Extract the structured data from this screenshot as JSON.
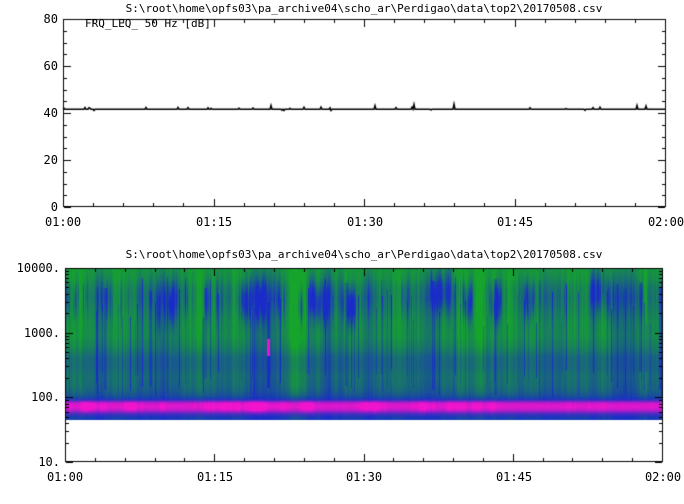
{
  "page": {
    "background": "#ffffff",
    "text_color": "#000000"
  },
  "chart_data": [
    {
      "type": "line",
      "title": "S:\\root\\home\\opfs03\\pa_archive04\\scho_ar\\Perdigao\\data\\top2\\20170508.csv",
      "annotation": "FRQ_LEQ_ 50 Hz [dB]",
      "series": [
        {
          "name": "FRQ_LEQ_ 50 Hz [dB]",
          "value_dB": 42,
          "description": "nearly constant ~42 dB across the whole hour with sporadic 1-2 dB spikes"
        }
      ],
      "x_range": [
        "01:00",
        "02:00"
      ],
      "x_tick_labels": [
        "01:00",
        "01:15",
        "01:30",
        "01:45",
        "02:00"
      ],
      "x_minor_divisions": 5,
      "ylim": [
        0,
        80
      ],
      "y_tick_values": [
        80,
        60,
        40,
        20,
        0
      ],
      "y_tick_labels": [
        "80",
        "60",
        "40",
        "20",
        "0"
      ],
      "y_minor_step": 5,
      "grid": false,
      "line_color": "#000000"
    },
    {
      "type": "heatmap",
      "title": "S:\\root\\home\\opfs03\\pa_archive04\\scho_ar\\Perdigao\\data\\top2\\20170508.csv",
      "x_range": [
        "01:00",
        "02:00"
      ],
      "x_tick_labels": [
        "01:00",
        "01:15",
        "01:30",
        "01:45",
        "02:00"
      ],
      "x_minor_divisions": 5,
      "y_scale": "log",
      "ylim": [
        10,
        10000
      ],
      "y_tick_values": [
        10000,
        1000,
        100,
        10
      ],
      "y_tick_labels": [
        "10000.",
        "1000.",
        "100.",
        "10."
      ],
      "data_freq_range_hz": [
        45,
        10000
      ],
      "blob_band_hz": [
        2000,
        6000
      ],
      "magenta_band_hz": [
        58,
        92
      ],
      "colors": {
        "low": "#16a42c",
        "high": "#1a2cc8",
        "peak": "#f214cd"
      },
      "blueness_profile": [
        [
          10000,
          0.1
        ],
        [
          7000,
          0.15
        ],
        [
          5000,
          0.28
        ],
        [
          3500,
          0.32
        ],
        [
          2500,
          0.27
        ],
        [
          1500,
          0.18
        ],
        [
          900,
          0.18
        ],
        [
          600,
          0.3
        ],
        [
          420,
          0.5
        ],
        [
          300,
          0.52
        ],
        [
          220,
          0.44
        ],
        [
          160,
          0.47
        ],
        [
          130,
          0.54
        ],
        [
          110,
          0.66
        ],
        [
          100,
          0.8
        ],
        [
          93,
          0.9
        ],
        [
          88,
          0.95
        ],
        [
          60,
          0.95
        ],
        [
          52,
          0.9
        ],
        [
          45,
          0.85
        ]
      ],
      "variability_profile": [
        [
          10000,
          0.22
        ],
        [
          6000,
          0.5
        ],
        [
          3500,
          0.7
        ],
        [
          2000,
          0.5
        ],
        [
          1000,
          0.38
        ],
        [
          500,
          0.33
        ],
        [
          300,
          0.3
        ],
        [
          150,
          0.33
        ],
        [
          110,
          0.25
        ],
        [
          95,
          0.12
        ],
        [
          60,
          0.08
        ],
        [
          45,
          0.2
        ]
      ],
      "magenta_profile": [
        [
          96,
          0
        ],
        [
          90,
          0.3
        ],
        [
          84,
          0.8
        ],
        [
          78,
          1
        ],
        [
          70,
          1
        ],
        [
          64,
          0.8
        ],
        [
          58,
          0.35
        ],
        [
          54,
          0.12
        ],
        [
          50,
          0
        ]
      ],
      "special_streaks": [
        {
          "x_frac": 0.067,
          "f_range": [
            130,
            5000
          ],
          "strength": 0.35,
          "width": 2
        },
        {
          "x_frac": 0.142,
          "f_range": [
            150,
            4500
          ],
          "strength": 0.3,
          "width": 2
        },
        {
          "x_frac": 0.234,
          "f_range": [
            200,
            5000
          ],
          "strength": 0.28,
          "width": 2
        },
        {
          "x_frac": 0.339,
          "f_range": [
            140,
            3000
          ],
          "strength": 0.55,
          "width": 2
        },
        {
          "x_frac": 0.339,
          "f_range": [
            450,
            820
          ],
          "strength": 0.95,
          "width": 3,
          "magenta": true
        },
        {
          "x_frac": 0.47,
          "f_range": [
            150,
            6000
          ],
          "strength": 0.38,
          "width": 2
        },
        {
          "x_frac": 0.615,
          "f_range": [
            130,
            6500
          ],
          "strength": 0.42,
          "width": 2
        },
        {
          "x_frac": 0.719,
          "f_range": [
            110,
            7000
          ],
          "strength": 0.45,
          "width": 2
        },
        {
          "x_frac": 0.961,
          "f_range": [
            250,
            6000
          ],
          "strength": 0.38,
          "width": 2
        },
        {
          "x_frac": 0.995,
          "f_range": [
            130,
            5000
          ],
          "strength": 0.5,
          "width": 3
        }
      ],
      "seed": 20170508
    }
  ]
}
